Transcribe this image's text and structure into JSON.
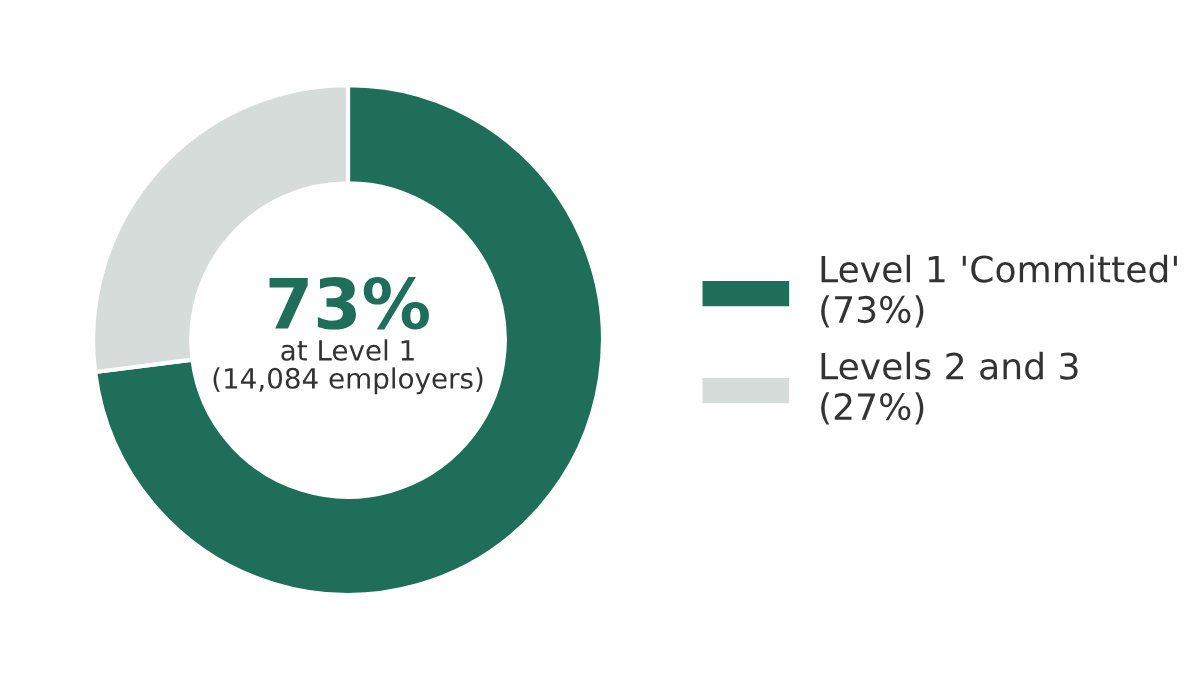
{
  "chart_data": {
    "type": "donut",
    "categories": [
      "Level 1 'Committed'\n(73%)",
      "Levels 2 and 3\n(27%)"
    ],
    "values": [
      73,
      27
    ],
    "colors": [
      "#1e6e5a",
      "#d5dcda"
    ],
    "annotations": [
      "73%",
      "at Level 1",
      "(14,084 employers)"
    ],
    "legend": "right"
  }
}
